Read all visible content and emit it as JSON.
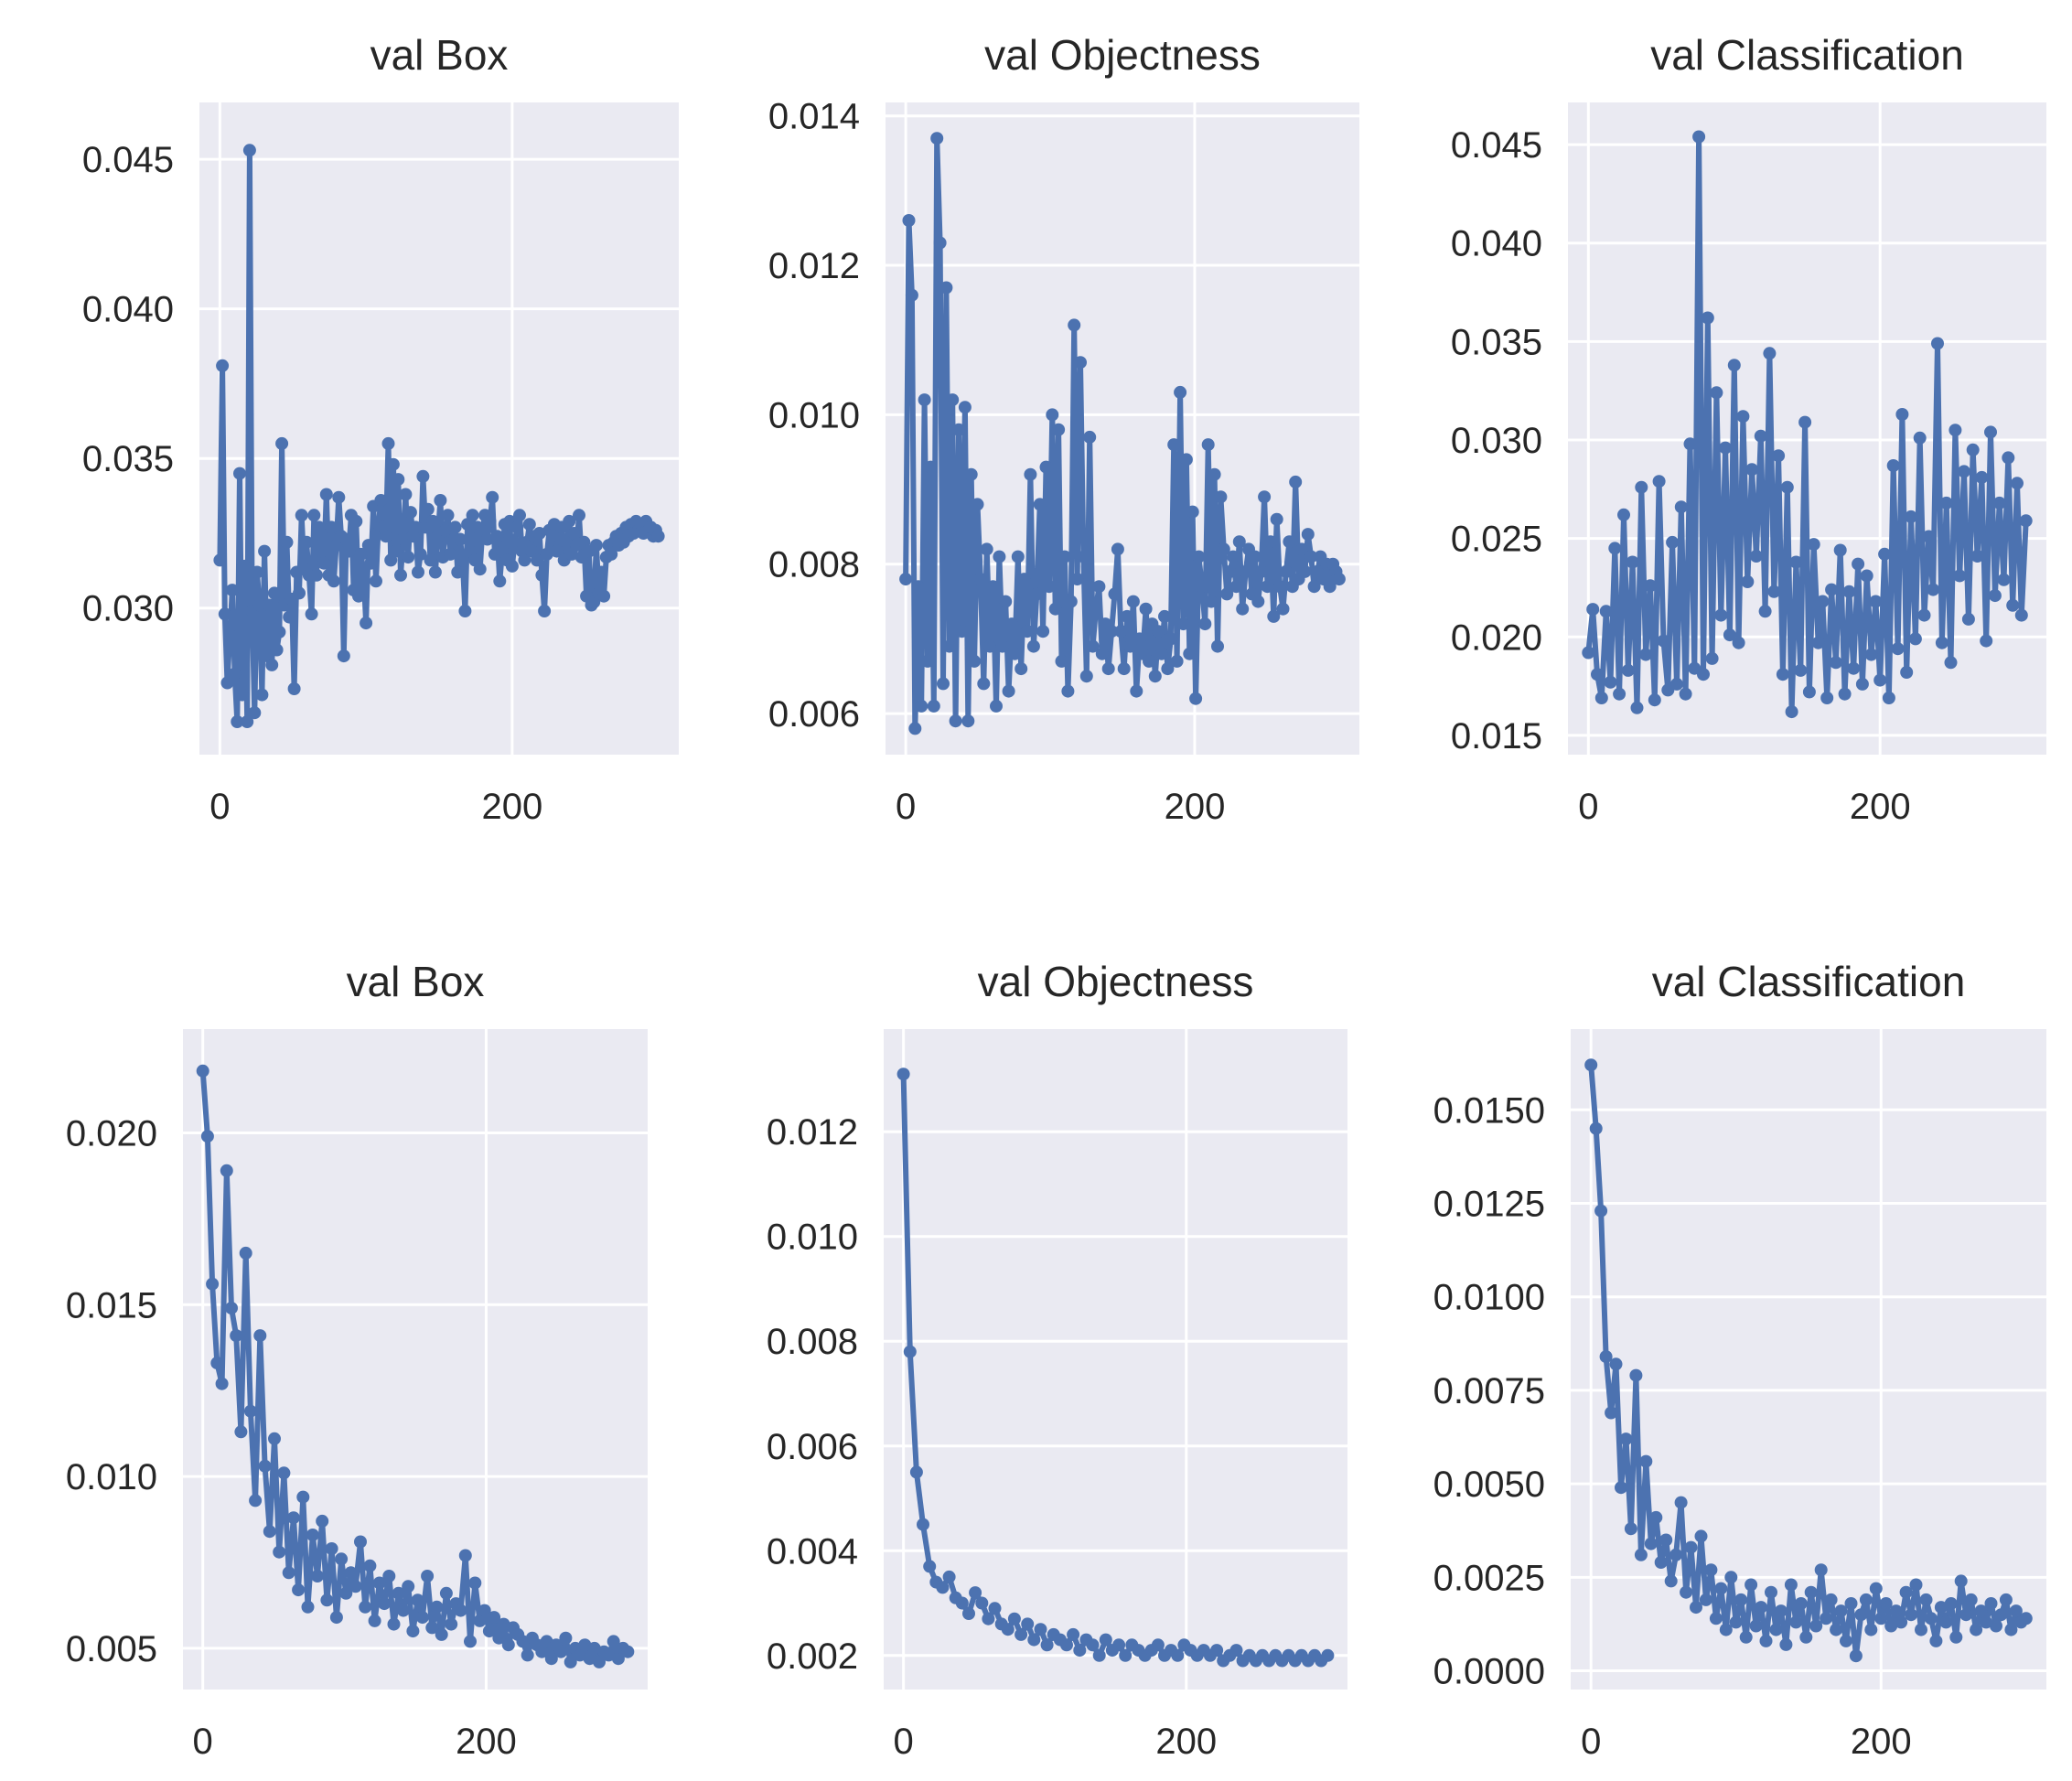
{
  "chart_data": [
    {
      "type": "line",
      "title": "val Box",
      "xlabel": "",
      "ylabel": "",
      "xlim": [
        -14,
        314
      ],
      "ylim": [
        0.0251,
        0.0469
      ],
      "xticks": [
        0,
        200
      ],
      "yticks": [
        0.03,
        0.035,
        0.04,
        0.045
      ],
      "ytick_labels": [
        "0.030",
        "0.035",
        "0.040",
        "0.045"
      ],
      "grid": true,
      "series": [
        {
          "name": "val Box",
          "values": [
            0.0316,
            0.0381,
            0.0298,
            0.0275,
            0.0291,
            0.0306,
            0.0278,
            0.0262,
            0.0345,
            0.0271,
            0.0314,
            0.0262,
            0.0453,
            0.0299,
            0.0265,
            0.0312,
            0.0301,
            0.0271,
            0.0319,
            0.0284,
            0.0301,
            0.0281,
            0.0305,
            0.0286,
            0.0292,
            0.0355,
            0.0301,
            0.0322,
            0.0297,
            0.0303,
            0.0273,
            0.0312,
            0.0305,
            0.0331,
            0.0313,
            0.0322,
            0.0311,
            0.0298,
            0.0331,
            0.0311,
            0.0327,
            0.0319,
            0.0315,
            0.0338,
            0.0311,
            0.0327,
            0.0309,
            0.0321,
            0.0337,
            0.0324,
            0.0284,
            0.0323,
            0.0319,
            0.0331,
            0.0306,
            0.0329,
            0.0304,
            0.0318,
            0.0312,
            0.0295,
            0.0321,
            0.0315,
            0.0334,
            0.0309,
            0.0328,
            0.0336,
            0.0327,
            0.0324,
            0.0355,
            0.0316,
            0.0348,
            0.0319,
            0.0343,
            0.0311,
            0.0323,
            0.0338,
            0.0317,
            0.0332,
            0.0324,
            0.0327,
            0.0312,
            0.0318,
            0.0344,
            0.0327,
            0.0333,
            0.0316,
            0.0329,
            0.0312,
            0.0324,
            0.0336,
            0.0317,
            0.0326,
            0.0331,
            0.0318,
            0.0322,
            0.0327,
            0.0312,
            0.0323,
            0.0316,
            0.0299,
            0.0328,
            0.0319,
            0.0331,
            0.0316,
            0.0327,
            0.0313,
            0.0326,
            0.0331,
            0.0323,
            0.0329,
            0.0337,
            0.0318,
            0.0324,
            0.0309,
            0.0319,
            0.0328,
            0.0316,
            0.0329,
            0.0314,
            0.0322,
            0.0327,
            0.0331,
            0.0319,
            0.0316,
            0.0322,
            0.0328,
            0.0319,
            0.0324,
            0.0316,
            0.0325,
            0.0311,
            0.0299,
            0.0318,
            0.0326,
            0.0321,
            0.0328,
            0.0319,
            0.0324,
            0.0327,
            0.0316,
            0.0322,
            0.0329,
            0.0318,
            0.0325,
            0.0321,
            0.0331,
            0.0317,
            0.0322,
            0.0304,
            0.0319,
            0.0301,
            0.0302,
            0.0321,
            0.0305,
            0.0312,
            0.0304,
            0.0317,
            0.0321,
            0.0318,
            0.0322,
            0.0324,
            0.0321,
            0.0325,
            0.0322,
            0.0327,
            0.0324,
            0.0328,
            0.0325,
            0.0329,
            0.0326,
            0.0328,
            0.0325,
            0.0329,
            0.0326,
            0.0327,
            0.0324,
            0.0326,
            0.0324
          ]
        }
      ]
    },
    {
      "type": "line",
      "title": "val Objectness",
      "xlabel": "",
      "ylabel": "",
      "xlim": [
        -14,
        314
      ],
      "ylim": [
        0.00545,
        0.01418
      ],
      "xticks": [
        0,
        200
      ],
      "yticks": [
        0.006,
        0.008,
        0.01,
        0.012,
        0.014
      ],
      "ytick_labels": [
        "0.006",
        "0.008",
        "0.010",
        "0.012",
        "0.014"
      ],
      "grid": true,
      "series": [
        {
          "name": "val Objectness",
          "values": [
            0.0078,
            0.0126,
            0.0116,
            0.0058,
            0.0077,
            0.0061,
            0.0102,
            0.0067,
            0.0093,
            0.0061,
            0.0137,
            0.0123,
            0.0064,
            0.0117,
            0.0069,
            0.0102,
            0.0059,
            0.0098,
            0.0071,
            0.0101,
            0.0059,
            0.0092,
            0.0067,
            0.0088,
            0.0078,
            0.0064,
            0.0082,
            0.0069,
            0.0077,
            0.0061,
            0.0081,
            0.0069,
            0.0075,
            0.0063,
            0.0072,
            0.0068,
            0.0081,
            0.0066,
            0.0078,
            0.0071,
            0.0092,
            0.0069,
            0.0076,
            0.0088,
            0.0071,
            0.0093,
            0.0077,
            0.01,
            0.0074,
            0.0098,
            0.0067,
            0.0081,
            0.0063,
            0.0075,
            0.0112,
            0.0078,
            0.0107,
            0.0081,
            0.0065,
            0.0097,
            0.0069,
            0.0074,
            0.0077,
            0.0068,
            0.0072,
            0.0066,
            0.0071,
            0.0076,
            0.0082,
            0.0071,
            0.0066,
            0.0073,
            0.0069,
            0.0075,
            0.0063,
            0.007,
            0.0068,
            0.0074,
            0.0067,
            0.0072,
            0.0065,
            0.0071,
            0.0068,
            0.0073,
            0.0066,
            0.007,
            0.0096,
            0.0067,
            0.0103,
            0.0072,
            0.0094,
            0.0068,
            0.0087,
            0.0062,
            0.0081,
            0.0077,
            0.0072,
            0.0096,
            0.0075,
            0.0092,
            0.0069,
            0.0089,
            0.0082,
            0.0076,
            0.0079,
            0.0081,
            0.0077,
            0.0083,
            0.0074,
            0.0079,
            0.0082,
            0.0076,
            0.0081,
            0.0075,
            0.0079,
            0.0089,
            0.0077,
            0.0083,
            0.0073,
            0.0086,
            0.0077,
            0.0074,
            0.0079,
            0.0083,
            0.0077,
            0.0091,
            0.0078,
            0.0082,
            0.0079,
            0.0084,
            0.0081,
            0.0077,
            0.0079,
            0.0081,
            0.0078,
            0.008,
            0.0077,
            0.008,
            0.0079,
            0.0078
          ]
        }
      ]
    },
    {
      "type": "line",
      "title": "val Classification",
      "xlabel": "",
      "ylabel": "",
      "xlim": [
        -14,
        314
      ],
      "ylim": [
        0.01402,
        0.04714
      ],
      "xticks": [
        0,
        200
      ],
      "yticks": [
        0.015,
        0.02,
        0.025,
        0.03,
        0.035,
        0.04,
        0.045
      ],
      "ytick_labels": [
        "0.015",
        "0.020",
        "0.025",
        "0.030",
        "0.035",
        "0.040",
        "0.045"
      ],
      "grid": true,
      "series": [
        {
          "name": "val Classification",
          "values": [
            0.0192,
            0.0214,
            0.0181,
            0.0169,
            0.0213,
            0.0177,
            0.0245,
            0.0171,
            0.0262,
            0.0183,
            0.0238,
            0.0164,
            0.0276,
            0.0191,
            0.0226,
            0.0168,
            0.0279,
            0.0198,
            0.0173,
            0.0248,
            0.0176,
            0.0266,
            0.0171,
            0.0298,
            0.0184,
            0.0454,
            0.0181,
            0.0362,
            0.0189,
            0.0324,
            0.0211,
            0.0296,
            0.0201,
            0.0338,
            0.0197,
            0.0312,
            0.0228,
            0.0285,
            0.0241,
            0.0302,
            0.0213,
            0.0344,
            0.0223,
            0.0292,
            0.0181,
            0.0276,
            0.0162,
            0.0238,
            0.0183,
            0.0309,
            0.0172,
            0.0247,
            0.0197,
            0.0218,
            0.0169,
            0.0224,
            0.0187,
            0.0244,
            0.0171,
            0.0223,
            0.0184,
            0.0237,
            0.0176,
            0.0231,
            0.0191,
            0.0218,
            0.0178,
            0.0242,
            0.0169,
            0.0287,
            0.0194,
            0.0313,
            0.0182,
            0.0261,
            0.0199,
            0.0301,
            0.0211,
            0.0251,
            0.0224,
            0.0349,
            0.0197,
            0.0268,
            0.0187,
            0.0305,
            0.0231,
            0.0284,
            0.0209,
            0.0295,
            0.0241,
            0.0281,
            0.0198,
            0.0304,
            0.0221,
            0.0268,
            0.0229,
            0.0291,
            0.0216,
            0.0278,
            0.0211,
            0.0259
          ]
        }
      ]
    },
    {
      "type": "line",
      "title": "val Box",
      "xlabel": "",
      "ylabel": "",
      "xlim": [
        -14,
        314
      ],
      "ylim": [
        0.0038,
        0.02302
      ],
      "xticks": [
        0,
        200
      ],
      "yticks": [
        0.005,
        0.01,
        0.015,
        0.02
      ],
      "ytick_labels": [
        "0.005",
        "0.010",
        "0.015",
        "0.020"
      ],
      "grid": true,
      "series": [
        {
          "name": "val Box",
          "values": [
            0.0218,
            0.0199,
            0.0156,
            0.0133,
            0.0127,
            0.0189,
            0.0149,
            0.0141,
            0.0113,
            0.0165,
            0.0119,
            0.0093,
            0.0141,
            0.0103,
            0.0084,
            0.0111,
            0.0078,
            0.0101,
            0.0072,
            0.0088,
            0.0067,
            0.0094,
            0.0062,
            0.0083,
            0.0071,
            0.0087,
            0.0064,
            0.0079,
            0.0059,
            0.0076,
            0.0066,
            0.0072,
            0.0068,
            0.0081,
            0.0062,
            0.0074,
            0.0058,
            0.0069,
            0.0063,
            0.0071,
            0.0057,
            0.0066,
            0.0061,
            0.0068,
            0.0055,
            0.0064,
            0.0059,
            0.0071,
            0.0056,
            0.0062,
            0.0054,
            0.0066,
            0.0057,
            0.0063,
            0.0061,
            0.0077,
            0.0052,
            0.0069,
            0.0058,
            0.0061,
            0.0055,
            0.0059,
            0.0053,
            0.0057,
            0.0051,
            0.0056,
            0.0054,
            0.0052,
            0.0048,
            0.0053,
            0.0051,
            0.0049,
            0.0052,
            0.0047,
            0.0051,
            0.0049,
            0.0053,
            0.0046,
            0.005,
            0.0048,
            0.0051,
            0.0047,
            0.005,
            0.0046,
            0.0049,
            0.0048,
            0.0052,
            0.0047,
            0.005,
            0.0049
          ]
        }
      ]
    },
    {
      "type": "line",
      "title": "val Objectness",
      "xlabel": "",
      "ylabel": "",
      "xlim": [
        -14,
        314
      ],
      "ylim": [
        0.00135,
        0.01396
      ],
      "xticks": [
        0,
        200
      ],
      "yticks": [
        0.002,
        0.004,
        0.006,
        0.008,
        0.01,
        0.012
      ],
      "ytick_labels": [
        "0.002",
        "0.004",
        "0.006",
        "0.008",
        "0.010",
        "0.012"
      ],
      "grid": true,
      "series": [
        {
          "name": "val Objectness",
          "values": [
            0.0131,
            0.0078,
            0.0055,
            0.0045,
            0.0037,
            0.0034,
            0.0033,
            0.0035,
            0.0031,
            0.003,
            0.0028,
            0.0032,
            0.003,
            0.0027,
            0.0029,
            0.0026,
            0.0025,
            0.0027,
            0.0024,
            0.0026,
            0.0023,
            0.0025,
            0.0022,
            0.0024,
            0.0023,
            0.0022,
            0.0024,
            0.0021,
            0.0023,
            0.0022,
            0.002,
            0.0023,
            0.0021,
            0.0022,
            0.002,
            0.0022,
            0.0021,
            0.002,
            0.0021,
            0.0022,
            0.002,
            0.0021,
            0.002,
            0.0022,
            0.0021,
            0.002,
            0.0021,
            0.002,
            0.0021,
            0.0019,
            0.002,
            0.0021,
            0.0019,
            0.002,
            0.0019,
            0.002,
            0.0019,
            0.002,
            0.0019,
            0.002,
            0.0019,
            0.002,
            0.0019,
            0.002,
            0.0019,
            0.002
          ]
        }
      ]
    },
    {
      "type": "line",
      "title": "val Classification",
      "xlabel": "",
      "ylabel": "",
      "xlim": [
        -14,
        314
      ],
      "ylim": [
        -0.0005,
        0.01716
      ],
      "xticks": [
        0,
        200
      ],
      "yticks": [
        0.0,
        0.0025,
        0.005,
        0.0075,
        0.01,
        0.0125,
        0.015
      ],
      "ytick_labels": [
        "0.0000",
        "0.0025",
        "0.0050",
        "0.0075",
        "0.0100",
        "0.0125",
        "0.0150"
      ],
      "grid": true,
      "series": [
        {
          "name": "val Classification",
          "values": [
            0.0162,
            0.0145,
            0.0123,
            0.0084,
            0.0069,
            0.0082,
            0.0049,
            0.0062,
            0.0038,
            0.0079,
            0.0031,
            0.0056,
            0.0034,
            0.0041,
            0.0029,
            0.0035,
            0.0024,
            0.0031,
            0.0045,
            0.0021,
            0.0033,
            0.0017,
            0.0036,
            0.0019,
            0.0027,
            0.0014,
            0.0022,
            0.0011,
            0.0025,
            0.0013,
            0.0019,
            0.0009,
            0.0023,
            0.0012,
            0.0017,
            0.0008,
            0.0021,
            0.0011,
            0.0016,
            0.0007,
            0.0023,
            0.0013,
            0.0018,
            0.0009,
            0.0021,
            0.0012,
            0.0027,
            0.0014,
            0.0019,
            0.0011,
            0.0016,
            0.0008,
            0.0018,
            0.0004,
            0.0015,
            0.0019,
            0.0011,
            0.0022,
            0.0014,
            0.0018,
            0.0012,
            0.0016,
            0.0013,
            0.0021,
            0.0015,
            0.0023,
            0.0011,
            0.0019,
            0.0014,
            0.0008,
            0.0017,
            0.0013,
            0.0018,
            0.0009,
            0.0024,
            0.0015,
            0.0019,
            0.0011,
            0.0016,
            0.0013,
            0.0018,
            0.0012,
            0.0015,
            0.0019,
            0.0011,
            0.0016,
            0.0013,
            0.0014
          ]
        }
      ]
    }
  ]
}
